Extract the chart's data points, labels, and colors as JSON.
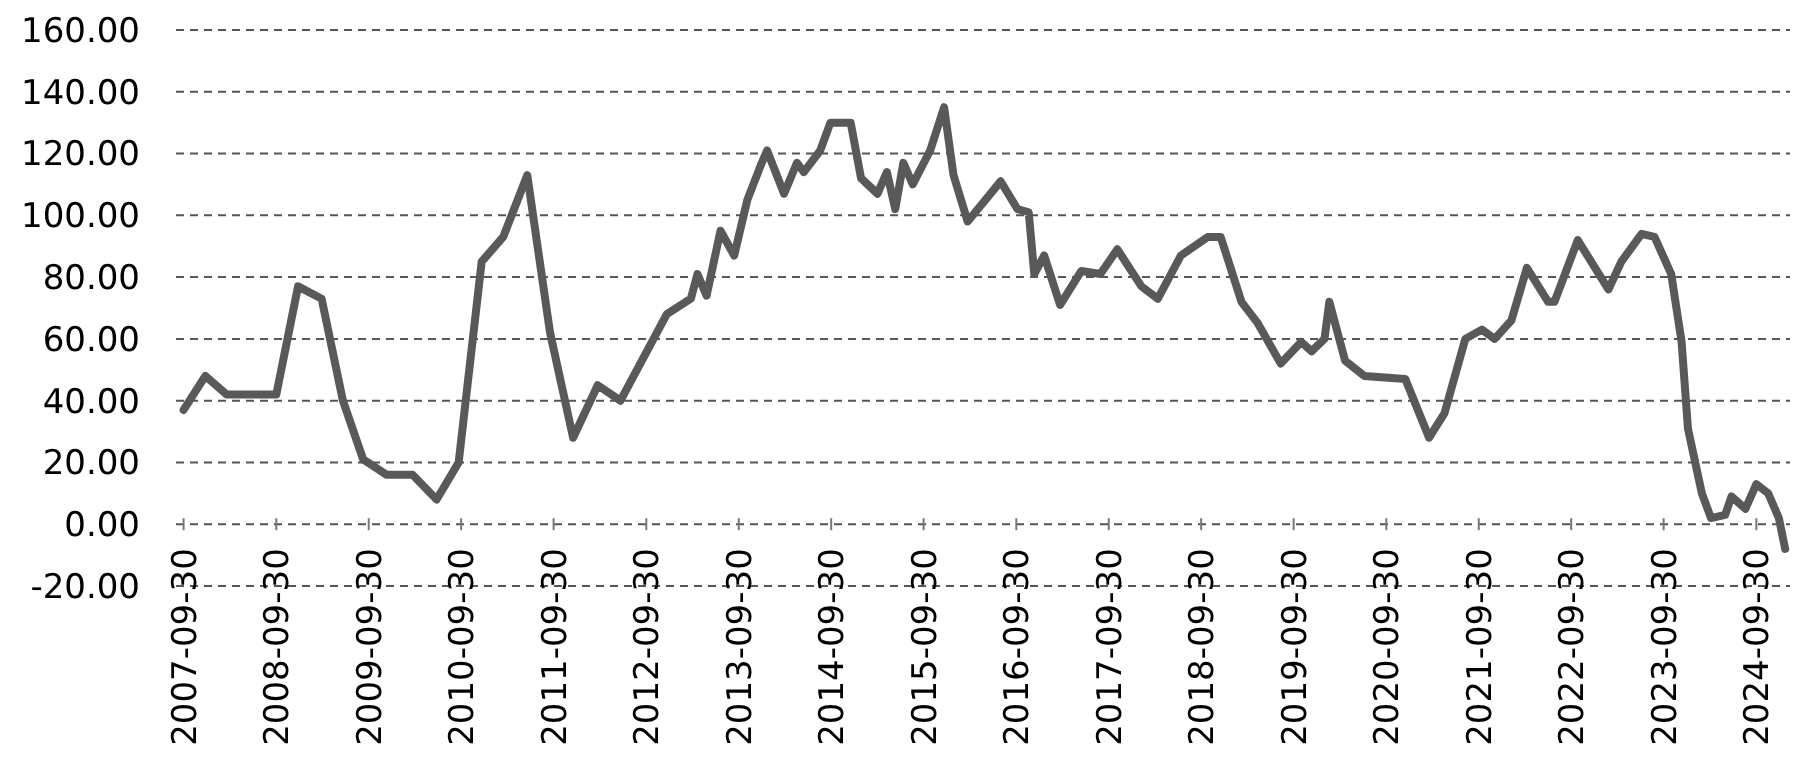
{
  "chart_data": {
    "type": "line",
    "x": [
      "2007-09-30",
      "2007-12-25",
      "2008-03-18",
      "2008-09-30",
      "2008-12-25",
      "2009-03-28",
      "2009-06-20",
      "2009-09-08",
      "2009-12-10",
      "2010-03-22",
      "2010-06-25",
      "2010-09-20",
      "2010-12-20",
      "2011-03-15",
      "2011-06-18",
      "2011-09-16",
      "2011-12-16",
      "2012-03-22",
      "2012-06-20",
      "2012-12-20",
      "2013-03-25",
      "2013-04-20",
      "2013-05-26",
      "2013-07-20",
      "2013-09-12",
      "2013-11-03",
      "2013-12-25",
      "2014-01-20",
      "2014-03-28",
      "2014-05-18",
      "2014-06-14",
      "2014-08-18",
      "2014-09-27",
      "2014-12-16",
      "2015-01-26",
      "2015-04-01",
      "2015-05-08",
      "2015-06-10",
      "2015-07-12",
      "2015-08-18",
      "2015-10-26",
      "2015-12-20",
      "2016-01-26",
      "2016-03-22",
      "2016-07-30",
      "2016-10-05",
      "2016-11-18",
      "2016-12-10",
      "2017-01-18",
      "2017-03-22",
      "2017-06-14",
      "2017-08-28",
      "2017-11-03",
      "2018-02-06",
      "2018-04-12",
      "2018-07-12",
      "2018-10-26",
      "2018-12-16",
      "2019-03-08",
      "2019-05-12",
      "2019-08-10",
      "2019-10-30",
      "2019-12-10",
      "2020-01-30",
      "2020-02-18",
      "2020-04-20",
      "2020-07-05",
      "2020-12-14",
      "2021-03-18",
      "2021-05-18",
      "2021-08-08",
      "2021-10-12",
      "2021-12-02",
      "2022-02-06",
      "2022-04-08",
      "2022-07-01",
      "2022-07-26",
      "2022-10-26",
      "2023-02-24",
      "2023-04-16",
      "2023-07-05",
      "2023-08-25",
      "2023-10-30",
      "2023-12-10",
      "2024-01-04",
      "2024-02-28",
      "2024-04-04",
      "2024-05-30",
      "2024-06-24",
      "2024-08-18",
      "2024-09-30",
      "2024-11-16",
      "2024-12-28",
      "2025-01-22"
    ],
    "series": [
      {
        "color": "#595959",
        "values": [
          37,
          48,
          42,
          42,
          77,
          73,
          40,
          21,
          16,
          16,
          8,
          20,
          85,
          93,
          113,
          62,
          28,
          45,
          40,
          68,
          73,
          81,
          74,
          95,
          87,
          105,
          116,
          121,
          107,
          117,
          114,
          121,
          130,
          130,
          112,
          107,
          114,
          102,
          117,
          110,
          121,
          135,
          113,
          98,
          111,
          102,
          101,
          81,
          87,
          71,
          82,
          81,
          89,
          77,
          73,
          87,
          93,
          93,
          72,
          65,
          52,
          59,
          56,
          60,
          72,
          53,
          48,
          47,
          28,
          36,
          60,
          63,
          60,
          66,
          83,
          72,
          72,
          92,
          76,
          85,
          94,
          93,
          81,
          59,
          31,
          10,
          2,
          3,
          9,
          5,
          13,
          10,
          2,
          -8
        ]
      }
    ],
    "ylim": [
      -20,
      160
    ],
    "yticks": [
      {
        "value": -20,
        "label": "-20.00"
      },
      {
        "value": 0,
        "label": "0.00"
      },
      {
        "value": 20,
        "label": "20.00"
      },
      {
        "value": 40,
        "label": "40.00"
      },
      {
        "value": 60,
        "label": "60.00"
      },
      {
        "value": 80,
        "label": "80.00"
      },
      {
        "value": 100,
        "label": "100.00"
      },
      {
        "value": 120,
        "label": "120.00"
      },
      {
        "value": 140,
        "label": "140.00"
      },
      {
        "value": 160,
        "label": "160.00"
      }
    ],
    "xlim": [
      "2007-08-31",
      "2025-02-10"
    ],
    "xticks": [
      "2007-09-30",
      "2008-09-30",
      "2009-09-30",
      "2010-09-30",
      "2011-09-30",
      "2012-09-30",
      "2013-09-30",
      "2014-09-30",
      "2015-09-30",
      "2016-09-30",
      "2017-09-30",
      "2018-09-30",
      "2019-09-30",
      "2020-09-30",
      "2021-09-30",
      "2022-09-30",
      "2023-09-30",
      "2024-09-30"
    ],
    "grid": "y",
    "marker": "none",
    "line_style": "solid"
  }
}
